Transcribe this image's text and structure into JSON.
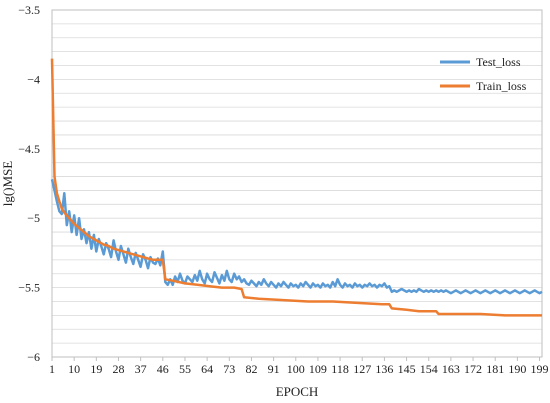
{
  "chart_data": {
    "type": "line",
    "xlabel": "EPOCH",
    "ylabel": "lg()MSE",
    "xlim": [
      1,
      200
    ],
    "ylim": [
      -6,
      -3.5
    ],
    "y_ticks": [
      -3.5,
      -4,
      -4.5,
      -5,
      -5.5,
      -6
    ],
    "y_tick_labels": [
      "−3.5",
      "−4",
      "−4.5",
      "−5",
      "−5.5",
      "−6"
    ],
    "x_ticks": [
      1,
      10,
      19,
      28,
      37,
      46,
      55,
      64,
      73,
      82,
      91,
      100,
      109,
      118,
      127,
      136,
      145,
      154,
      163,
      172,
      181,
      190,
      199
    ],
    "grid": "horizontal",
    "legend_position": "top-right",
    "series": [
      {
        "name": "Test_loss",
        "color": "#5b9bd5",
        "x": [
          1,
          2,
          3,
          4,
          5,
          6,
          7,
          8,
          9,
          10,
          11,
          12,
          13,
          14,
          15,
          16,
          17,
          18,
          19,
          20,
          21,
          22,
          23,
          24,
          25,
          26,
          27,
          28,
          29,
          30,
          31,
          32,
          33,
          34,
          35,
          36,
          37,
          38,
          39,
          40,
          41,
          42,
          43,
          44,
          45,
          46,
          47,
          48,
          49,
          50,
          51,
          52,
          53,
          54,
          55,
          56,
          57,
          58,
          59,
          60,
          61,
          62,
          63,
          64,
          65,
          66,
          67,
          68,
          69,
          70,
          71,
          72,
          73,
          74,
          75,
          76,
          77,
          78,
          79,
          80,
          81,
          82,
          83,
          84,
          85,
          86,
          87,
          88,
          89,
          90,
          91,
          92,
          93,
          94,
          95,
          96,
          97,
          98,
          99,
          100,
          101,
          102,
          103,
          104,
          105,
          106,
          107,
          108,
          109,
          110,
          111,
          112,
          113,
          114,
          115,
          116,
          117,
          118,
          119,
          120,
          121,
          122,
          123,
          124,
          125,
          126,
          127,
          128,
          129,
          130,
          131,
          132,
          133,
          134,
          135,
          136,
          137,
          138,
          139,
          140,
          141,
          142,
          143,
          144,
          145,
          146,
          147,
          148,
          149,
          150,
          151,
          152,
          153,
          154,
          155,
          156,
          157,
          158,
          159,
          160,
          161,
          162,
          163,
          164,
          165,
          166,
          167,
          168,
          169,
          170,
          171,
          172,
          173,
          174,
          175,
          176,
          177,
          178,
          179,
          180,
          181,
          182,
          183,
          184,
          185,
          186,
          187,
          188,
          189,
          190,
          191,
          192,
          193,
          194,
          195,
          196,
          197,
          198,
          199,
          200
        ],
        "y": [
          -4.72,
          -4.8,
          -4.88,
          -4.95,
          -4.97,
          -4.82,
          -5.05,
          -4.95,
          -5.1,
          -4.98,
          -5.12,
          -5.0,
          -5.15,
          -5.08,
          -5.18,
          -5.1,
          -5.22,
          -5.12,
          -5.24,
          -5.15,
          -5.2,
          -5.26,
          -5.18,
          -5.22,
          -5.28,
          -5.16,
          -5.24,
          -5.3,
          -5.2,
          -5.26,
          -5.32,
          -5.22,
          -5.28,
          -5.33,
          -5.25,
          -5.3,
          -5.35,
          -5.26,
          -5.3,
          -5.36,
          -5.28,
          -5.32,
          -5.33,
          -5.29,
          -5.34,
          -5.24,
          -5.46,
          -5.48,
          -5.44,
          -5.48,
          -5.42,
          -5.46,
          -5.4,
          -5.45,
          -5.47,
          -5.42,
          -5.44,
          -5.46,
          -5.41,
          -5.45,
          -5.38,
          -5.44,
          -5.47,
          -5.4,
          -5.44,
          -5.46,
          -5.39,
          -5.43,
          -5.47,
          -5.41,
          -5.45,
          -5.38,
          -5.44,
          -5.46,
          -5.4,
          -5.44,
          -5.42,
          -5.46,
          -5.44,
          -5.47,
          -5.48,
          -5.45,
          -5.47,
          -5.49,
          -5.46,
          -5.48,
          -5.44,
          -5.47,
          -5.49,
          -5.46,
          -5.48,
          -5.5,
          -5.47,
          -5.49,
          -5.46,
          -5.48,
          -5.5,
          -5.47,
          -5.49,
          -5.48,
          -5.5,
          -5.47,
          -5.49,
          -5.46,
          -5.48,
          -5.5,
          -5.47,
          -5.49,
          -5.48,
          -5.5,
          -5.47,
          -5.49,
          -5.48,
          -5.5,
          -5.46,
          -5.49,
          -5.44,
          -5.48,
          -5.5,
          -5.47,
          -5.49,
          -5.48,
          -5.5,
          -5.47,
          -5.49,
          -5.48,
          -5.5,
          -5.48,
          -5.49,
          -5.47,
          -5.49,
          -5.48,
          -5.5,
          -5.48,
          -5.49,
          -5.47,
          -5.5,
          -5.49,
          -5.53,
          -5.52,
          -5.53,
          -5.52,
          -5.51,
          -5.52,
          -5.53,
          -5.52,
          -5.53,
          -5.52,
          -5.53,
          -5.51,
          -5.52,
          -5.53,
          -5.52,
          -5.53,
          -5.52,
          -5.53,
          -5.52,
          -5.53,
          -5.52,
          -5.53,
          -5.52,
          -5.53,
          -5.54,
          -5.53,
          -5.52,
          -5.53,
          -5.54,
          -5.53,
          -5.52,
          -5.53,
          -5.54,
          -5.53,
          -5.52,
          -5.53,
          -5.54,
          -5.53,
          -5.52,
          -5.53,
          -5.54,
          -5.53,
          -5.52,
          -5.53,
          -5.54,
          -5.53,
          -5.52,
          -5.53,
          -5.54,
          -5.53,
          -5.52,
          -5.53,
          -5.54,
          -5.53,
          -5.52,
          -5.53,
          -5.54,
          -5.53,
          -5.52,
          -5.53,
          -5.54,
          -5.53
        ]
      },
      {
        "name": "Train_loss",
        "color": "#ed7d31",
        "x": [
          1,
          2,
          3,
          4,
          5,
          6,
          7,
          8,
          9,
          10,
          12,
          14,
          16,
          18,
          20,
          22,
          24,
          26,
          28,
          30,
          32,
          34,
          36,
          38,
          40,
          42,
          44,
          46,
          47,
          50,
          55,
          60,
          65,
          70,
          75,
          78,
          79,
          85,
          95,
          105,
          115,
          125,
          135,
          138,
          139,
          145,
          150,
          155,
          157,
          158,
          165,
          175,
          185,
          195,
          200
        ],
        "y": [
          -3.85,
          -4.7,
          -4.82,
          -4.88,
          -4.93,
          -4.96,
          -4.98,
          -5.0,
          -5.02,
          -5.04,
          -5.07,
          -5.1,
          -5.13,
          -5.15,
          -5.17,
          -5.19,
          -5.2,
          -5.22,
          -5.23,
          -5.24,
          -5.25,
          -5.26,
          -5.27,
          -5.28,
          -5.29,
          -5.3,
          -5.3,
          -5.3,
          -5.44,
          -5.45,
          -5.47,
          -5.48,
          -5.49,
          -5.5,
          -5.5,
          -5.51,
          -5.57,
          -5.58,
          -5.59,
          -5.6,
          -5.6,
          -5.61,
          -5.62,
          -5.62,
          -5.65,
          -5.66,
          -5.67,
          -5.67,
          -5.67,
          -5.69,
          -5.69,
          -5.69,
          -5.7,
          -5.7,
          -5.7
        ]
      }
    ]
  }
}
